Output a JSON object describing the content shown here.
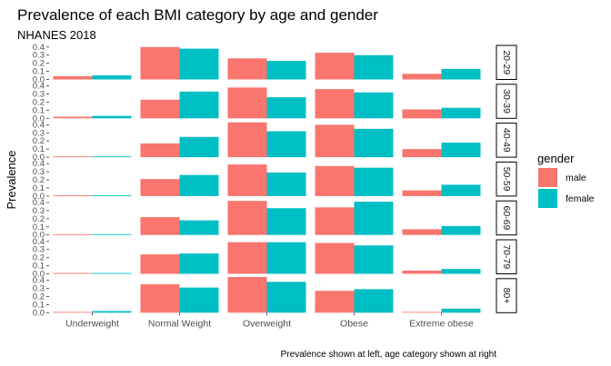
{
  "chart_data": {
    "type": "bar",
    "title": "Prevalence of each BMI category by age and gender",
    "subtitle": "NHANES 2018",
    "ylabel": "Prevalence",
    "xlabel": "",
    "caption": "Prevalence shown at left, age category shown at right",
    "categories": [
      "Underweight",
      "Normal Weight",
      "Overweight",
      "Obese",
      "Extreme obese"
    ],
    "y_ticks": [
      "0.0",
      "0.1",
      "0.2",
      "0.3",
      "0.4"
    ],
    "ylim": [
      0,
      0.42
    ],
    "grid": false,
    "legend": {
      "title": "gender",
      "placement": "right",
      "entries": [
        {
          "name": "male",
          "color": "#F8766D"
        },
        {
          "name": "female",
          "color": "#00BFC4"
        }
      ]
    },
    "facets": [
      {
        "label": "20-29",
        "male": [
          0.04,
          0.4,
          0.26,
          0.33,
          0.07
        ],
        "female": [
          0.05,
          0.38,
          0.23,
          0.3,
          0.13
        ]
      },
      {
        "label": "30-39",
        "male": [
          0.02,
          0.23,
          0.38,
          0.36,
          0.11
        ],
        "female": [
          0.03,
          0.33,
          0.26,
          0.32,
          0.13
        ]
      },
      {
        "label": "40-49",
        "male": [
          0.01,
          0.17,
          0.43,
          0.4,
          0.1
        ],
        "female": [
          0.01,
          0.25,
          0.32,
          0.35,
          0.18
        ]
      },
      {
        "label": "50-59",
        "male": [
          0.01,
          0.21,
          0.39,
          0.37,
          0.07
        ],
        "female": [
          0.01,
          0.26,
          0.29,
          0.35,
          0.14
        ]
      },
      {
        "label": "60-69",
        "male": [
          0.01,
          0.22,
          0.42,
          0.34,
          0.07
        ],
        "female": [
          0.01,
          0.18,
          0.33,
          0.41,
          0.11
        ]
      },
      {
        "label": "70-79",
        "male": [
          0.01,
          0.24,
          0.39,
          0.38,
          0.04
        ],
        "female": [
          0.01,
          0.25,
          0.39,
          0.35,
          0.06
        ]
      },
      {
        "label": "80+",
        "male": [
          0.01,
          0.35,
          0.44,
          0.27,
          0.01
        ],
        "female": [
          0.02,
          0.31,
          0.38,
          0.29,
          0.05
        ]
      }
    ]
  }
}
